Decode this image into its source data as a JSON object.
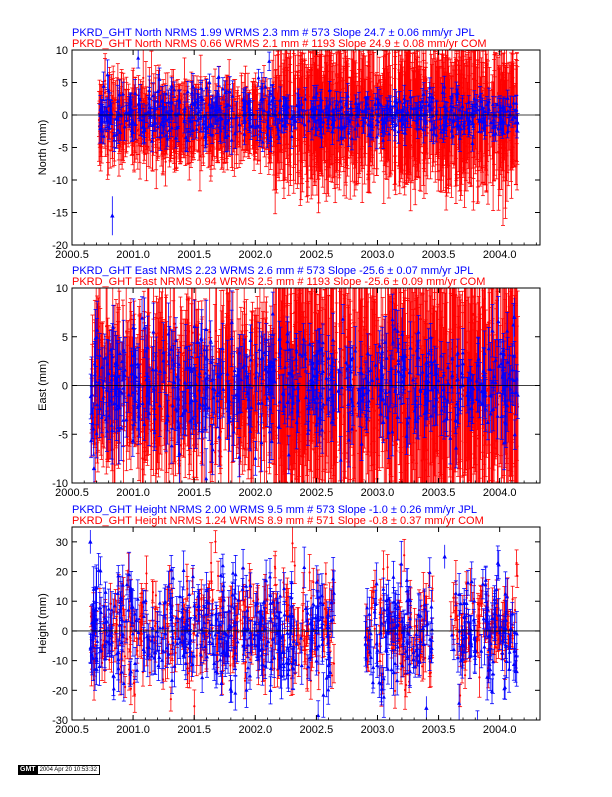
{
  "colors": {
    "jpl": "#0000ff",
    "com": "#ff0000",
    "axis": "#000000"
  },
  "stamp": {
    "logo": "GMT",
    "timestamp": "2004 Apr 20 10:53:32"
  },
  "chart_data": [
    {
      "type": "scatter",
      "ylabel": "North (mm)",
      "xlim": [
        2000.5,
        2004.33
      ],
      "ylim": [
        -20,
        10
      ],
      "xticks": [
        "2000.5",
        "2001.0",
        "2001.5",
        "2002.0",
        "2002.5",
        "2003.0",
        "2003.5",
        "2004.0"
      ],
      "yticks": [
        "10",
        "5",
        "0",
        "-5",
        "-10",
        "-15",
        "-20"
      ],
      "legend": [
        {
          "series": "JPL",
          "text": "PKRD_GHT North NRMS 1.99 WRMS  2.3 mm # 573 Slope   24.7 ±  0.06 mm/yr JPL"
        },
        {
          "series": "COM",
          "text": "PKRD_GHT North NRMS 0.66 WRMS  2.1 mm # 1193 Slope   24.9 ±  0.08 mm/yr COM"
        }
      ],
      "series": [
        {
          "name": "COM",
          "count": 1193,
          "wrms": 2.1,
          "segments": [
            {
              "x": [
                2000.72,
                2002.15
              ],
              "mean": -1,
              "scatter": 2.0,
              "err": 4.0
            },
            {
              "x": [
                2002.15,
                2003.0
              ],
              "mean": 0,
              "scatter": 2.0,
              "err": 8.0
            },
            {
              "x": [
                2003.0,
                2003.05
              ],
              "mean": 0,
              "scatter": 2.0,
              "err": 4.0
            },
            {
              "x": [
                2003.05,
                2004.15
              ],
              "mean": 0,
              "scatter": 2.0,
              "err": 8.0
            }
          ]
        },
        {
          "name": "JPL",
          "count": 573,
          "wrms": 2.3,
          "segments": [
            {
              "x": [
                2000.72,
                2002.15
              ],
              "mean": 0,
              "scatter": 2.2,
              "err": 1.8
            },
            {
              "x": [
                2002.15,
                2004.15
              ],
              "mean": 0,
              "scatter": 1.5,
              "err": 1.5
            }
          ],
          "outliers": [
            {
              "x": 2000.83,
              "y": -15.5,
              "err": 3
            }
          ]
        }
      ]
    },
    {
      "type": "scatter",
      "ylabel": "East (mm)",
      "xlim": [
        2000.5,
        2004.33
      ],
      "ylim": [
        -10,
        10
      ],
      "xticks": [
        "2000.5",
        "2001.0",
        "2001.5",
        "2002.0",
        "2002.5",
        "2003.0",
        "2003.5",
        "2004.0"
      ],
      "yticks": [
        "10",
        "5",
        "0",
        "-5",
        "-10"
      ],
      "legend": [
        {
          "series": "JPL",
          "text": "PKRD_GHT East NRMS 2.23 WRMS  2.6 mm # 573 Slope  -25.6 ±  0.07 mm/yr JPL"
        },
        {
          "series": "COM",
          "text": "PKRD_GHT East NRMS 0.94 WRMS  2.5 mm # 1193 Slope  -25.6 ±  0.09 mm/yr COM"
        }
      ],
      "series": [
        {
          "name": "COM",
          "count": 1193,
          "wrms": 2.5,
          "segments": [
            {
              "x": [
                2000.65,
                2002.15
              ],
              "mean": 0,
              "scatter": 3.0,
              "err": 5.0
            },
            {
              "x": [
                2002.15,
                2003.0
              ],
              "mean": 0,
              "scatter": 3.0,
              "err": 9.0
            },
            {
              "x": [
                2003.0,
                2003.05
              ],
              "mean": 0,
              "scatter": 3.0,
              "err": 5.0
            },
            {
              "x": [
                2003.05,
                2004.15
              ],
              "mean": 0,
              "scatter": 3.0,
              "err": 9.0
            }
          ]
        },
        {
          "name": "JPL",
          "count": 573,
          "wrms": 2.6,
          "segments": [
            {
              "x": [
                2000.65,
                2002.15
              ],
              "mean": 0,
              "scatter": 3.0,
              "err": 2.5
            },
            {
              "x": [
                2002.15,
                2004.15
              ],
              "mean": 0,
              "scatter": 2.5,
              "err": 2.0
            }
          ],
          "outliers": [
            {
              "x": 2000.68,
              "y": -8.5,
              "err": 1.5
            },
            {
              "x": 2004.12,
              "y": 7.0,
              "err": 2
            }
          ]
        }
      ]
    },
    {
      "type": "scatter",
      "ylabel": "Height (mm)",
      "xlim": [
        2000.5,
        2004.33
      ],
      "ylim": [
        -30,
        35
      ],
      "xticks": [
        "2000.5",
        "2001.0",
        "2001.5",
        "2002.0",
        "2002.5",
        "2003.0",
        "2003.5",
        "2004.0"
      ],
      "yticks": [
        "30",
        "20",
        "10",
        "0",
        "-10",
        "-20",
        "-30"
      ],
      "legend": [
        {
          "series": "JPL",
          "text": "PKRD_GHT Height NRMS 2.00 WRMS  9.5 mm # 573 Slope   -1.0 ±  0.26 mm/yr JPL"
        },
        {
          "series": "COM",
          "text": "PKRD_GHT Height NRMS 1.24 WRMS  8.9 mm # 571 Slope   -0.8 ±  0.37 mm/yr COM"
        }
      ],
      "series": [
        {
          "name": "COM",
          "count": 571,
          "wrms": 8.9,
          "segments": [
            {
              "x": [
                2000.65,
                2002.65
              ],
              "mean": 0,
              "scatter": 9.0,
              "err": 5.0
            },
            {
              "x": [
                2002.9,
                2003.45
              ],
              "mean": 0,
              "scatter": 9.0,
              "err": 5.0
            },
            {
              "x": [
                2003.6,
                2004.15
              ],
              "mean": 0,
              "scatter": 9.0,
              "err": 5.0
            }
          ]
        },
        {
          "name": "JPL",
          "count": 573,
          "wrms": 9.5,
          "segments": [
            {
              "x": [
                2000.65,
                2002.65
              ],
              "mean": 0,
              "scatter": 9.5,
              "err": 5.5
            },
            {
              "x": [
                2002.9,
                2003.45
              ],
              "mean": 0,
              "scatter": 9.5,
              "err": 5.5
            },
            {
              "x": [
                2003.6,
                2004.15
              ],
              "mean": 0,
              "scatter": 9.5,
              "err": 5.5
            }
          ],
          "outliers": [
            {
              "x": 2000.65,
              "y": 30,
              "err": 4
            },
            {
              "x": 2003.55,
              "y": 25,
              "err": 4
            },
            {
              "x": 2003.4,
              "y": -26,
              "err": 4
            }
          ]
        }
      ]
    }
  ]
}
